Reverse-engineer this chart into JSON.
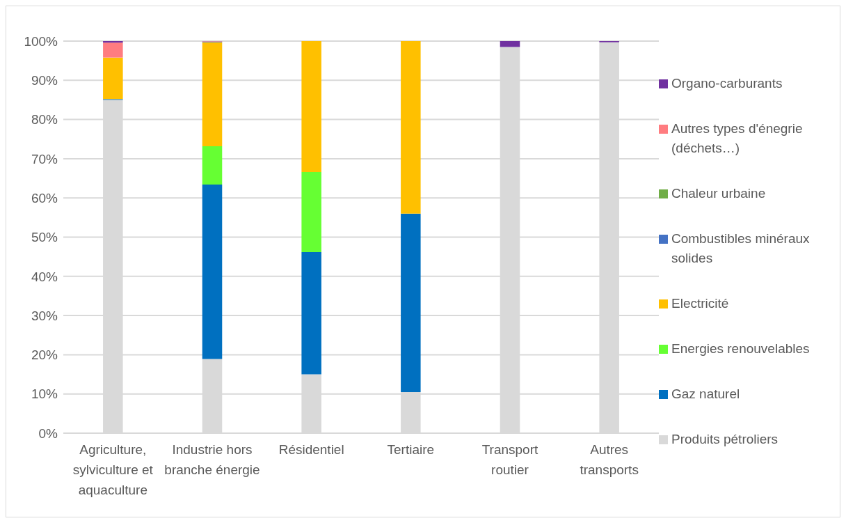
{
  "chart_data": {
    "type": "bar",
    "stacked": true,
    "categories": [
      "Agriculture, sylviculture et aquaculture",
      "Industrie hors branche énergie",
      "Résidentiel",
      "Tertiaire",
      "Transport routier",
      "Autres transports"
    ],
    "series": [
      {
        "name": "Produits pétroliers",
        "color": "#d9d9d9",
        "values": [
          85,
          18.9,
          15,
          10.5,
          98.5,
          99.7
        ]
      },
      {
        "name": "Gaz naturel",
        "color": "#0070c0",
        "values": [
          0.2,
          44.5,
          31.2,
          45.5,
          0,
          0
        ]
      },
      {
        "name": "Energies renouvelables",
        "color": "#66ff33",
        "values": [
          0,
          9.8,
          20.4,
          0,
          0,
          0
        ]
      },
      {
        "name": "Electricité",
        "color": "#ffc000",
        "values": [
          10.6,
          26.5,
          33.4,
          44,
          0,
          0
        ]
      },
      {
        "name": "Combustibles minéraux solides",
        "color": "#4472c4",
        "values": [
          0,
          0.2,
          0,
          0,
          0,
          0
        ]
      },
      {
        "name": "Chaleur urbaine",
        "color": "#70ad47",
        "values": [
          0,
          0,
          0,
          0,
          0,
          0
        ]
      },
      {
        "name": "Autres types d'énegrie (déchets…)",
        "color": "#ff7c80",
        "values": [
          3.8,
          0.1,
          0,
          0,
          0,
          0
        ]
      },
      {
        "name": "Organo-carburants",
        "color": "#7030a0",
        "values": [
          0.4,
          0,
          0,
          0,
          1.5,
          0.3
        ]
      }
    ],
    "ylim": [
      0,
      100
    ],
    "yticks": [
      {
        "value": 0,
        "label": "0%"
      },
      {
        "value": 10,
        "label": "10%"
      },
      {
        "value": 20,
        "label": "20%"
      },
      {
        "value": 30,
        "label": "30%"
      },
      {
        "value": 40,
        "label": "40%"
      },
      {
        "value": 50,
        "label": "50%"
      },
      {
        "value": 60,
        "label": "60%"
      },
      {
        "value": 70,
        "label": "70%"
      },
      {
        "value": 80,
        "label": "80%"
      },
      {
        "value": 90,
        "label": "90%"
      },
      {
        "value": 100,
        "label": "100%"
      }
    ],
    "grid": "y",
    "legend": "right"
  }
}
